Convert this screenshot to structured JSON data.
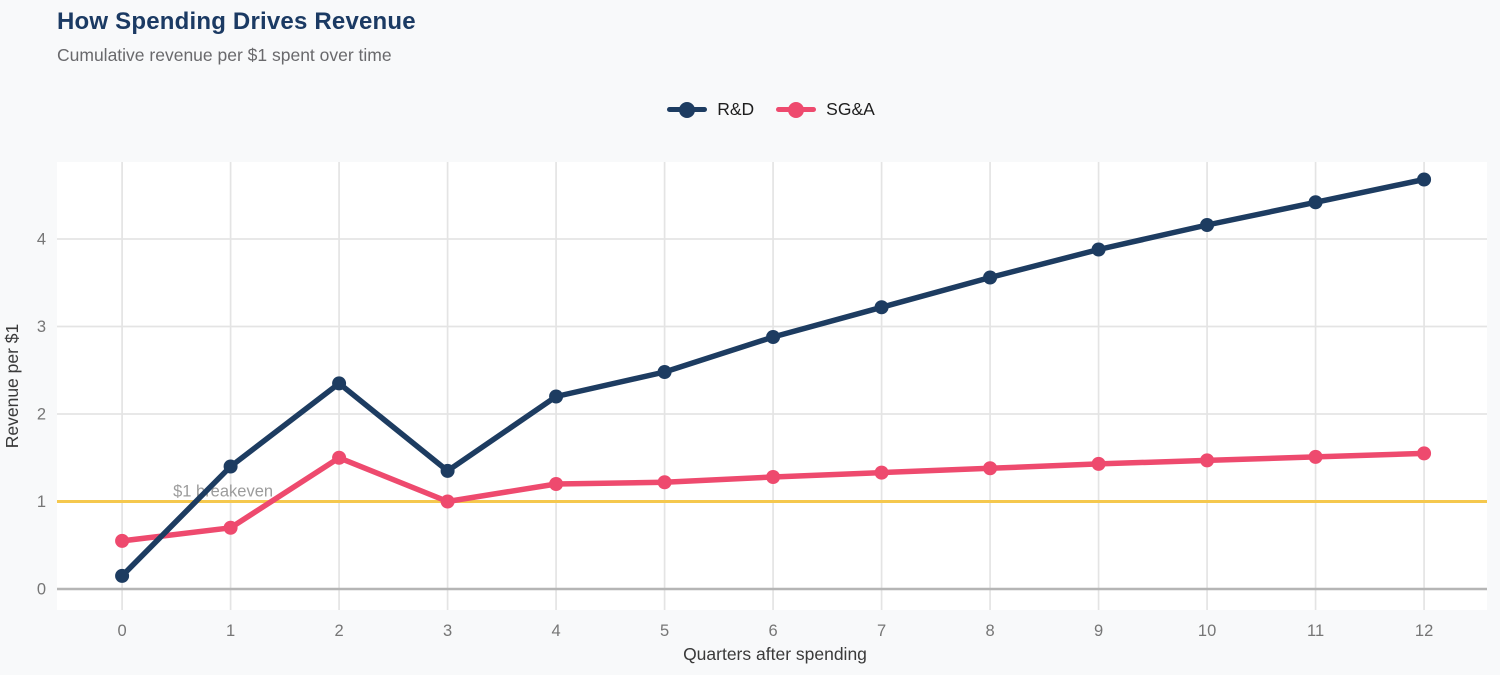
{
  "header": {
    "title": "How Spending Drives Revenue",
    "subtitle": "Cumulative revenue per $1 spent over time"
  },
  "chart_data": {
    "type": "line",
    "x": [
      0,
      1,
      2,
      3,
      4,
      5,
      6,
      7,
      8,
      9,
      10,
      11,
      12
    ],
    "series": [
      {
        "name": "R&D",
        "color": "#1d3c61",
        "values": [
          0.15,
          1.4,
          2.35,
          1.35,
          2.2,
          2.48,
          2.88,
          3.22,
          3.56,
          3.88,
          4.16,
          4.42,
          4.68
        ]
      },
      {
        "name": "SG&A",
        "color": "#ee4a6e",
        "values": [
          0.55,
          0.7,
          1.5,
          1.0,
          1.2,
          1.22,
          1.28,
          1.33,
          1.38,
          1.43,
          1.47,
          1.51,
          1.55
        ]
      }
    ],
    "title": "How Spending Drives Revenue",
    "subtitle": "Cumulative revenue per $1 spent over time",
    "xlabel": "Quarters after spending",
    "ylabel": "Revenue per $1",
    "xticks": [
      0,
      1,
      2,
      3,
      4,
      5,
      6,
      7,
      8,
      9,
      10,
      11,
      12
    ],
    "yticks": [
      0,
      1,
      2,
      3,
      4
    ],
    "xlim": [
      -0.6,
      12.58
    ],
    "ylim": [
      -0.24,
      4.88
    ],
    "grid": true,
    "legend_position": "top-center",
    "reference_line": {
      "y": 1,
      "label": "$1 breakeven",
      "color": "#f5c84e"
    }
  },
  "colors": {
    "page_background": "#f8f9fa",
    "plot_background": "#ffffff",
    "gridline": "#e4e4e4",
    "zero_line": "#b5b5b5",
    "title": "#1b3a63",
    "subtitle": "#69696c",
    "tick_label": "#767676",
    "axis_label": "#3a3a3a",
    "annotation": "#9c9c9c",
    "legend_text": "#1e1e1e"
  }
}
